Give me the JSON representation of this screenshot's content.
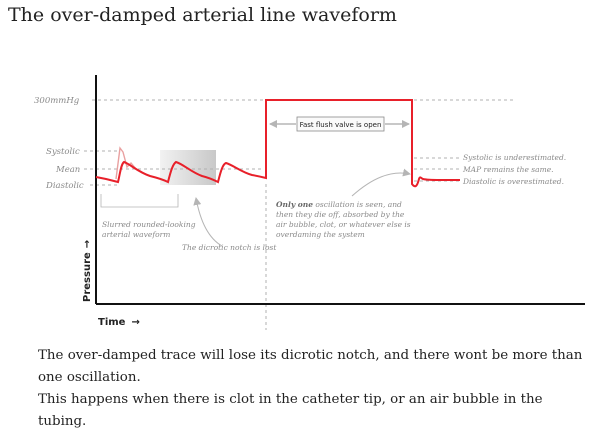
{
  "title": "The over-damped arterial line waveform",
  "diagram": {
    "level_labels": {
      "max": "300mmHg",
      "systolic": "Systolic",
      "mean": "Mean",
      "diastolic": "Diastolic"
    },
    "axis_labels": {
      "y": "Pressure",
      "x": "Time"
    },
    "arrow_glyph": "→",
    "annotations": {
      "flush": "Fast flush valve is open",
      "slurred_line1": "Slurred rounded-looking",
      "slurred_line2": "arterial waveform",
      "notch_lost": "The dicrotic notch is lost",
      "osc_bold": "Only one",
      "osc_line1_rest": " oscillation is seen, and",
      "osc_line2": "then they die off, absorbed by the",
      "osc_line3": "air bubble, clot, or whatever else is",
      "osc_line4": "overdaming the system",
      "systolic_effect": "Systolic  is underestimated.",
      "map_effect": "MAP remains the same.",
      "diastolic_effect": "Diastolic is overestimated."
    },
    "colors": {
      "trace": "#e8202a",
      "faded_trace": "#e9a0a0",
      "guide": "#b0b0b0",
      "axis": "#111111"
    }
  },
  "caption": {
    "line1": "The over-damped trace will lose its dicrotic notch, and there wont be more than one oscillation.",
    "line2": "This happens when there is clot in the catheter tip, or an air bubble in the tubing."
  }
}
